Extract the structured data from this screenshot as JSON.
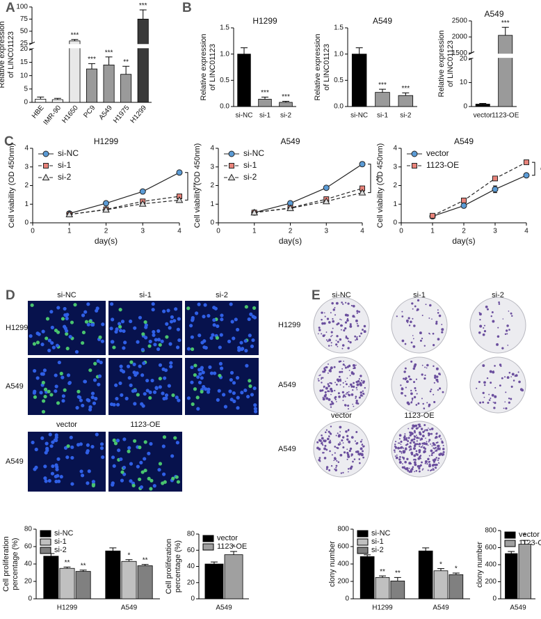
{
  "figure": {
    "panel_letters": [
      "A",
      "B",
      "C",
      "D",
      "E"
    ],
    "D": {
      "columns": [
        "si-NC",
        "si-1",
        "si-2"
      ],
      "rows": [
        "H1299",
        "A549"
      ],
      "oe_columns": [
        "vector",
        "1123-OE"
      ],
      "oe_row": "A549"
    },
    "E": {
      "columns": [
        "si-NC",
        "si-1",
        "si-2"
      ],
      "rows": [
        "H1299",
        "A549"
      ],
      "oe_columns": [
        "vector",
        "1123-OE"
      ],
      "oe_row": "A549"
    }
  },
  "chart_data": [
    {
      "type": "bar",
      "ylabel": [
        "Relative expression",
        "of LINC01123"
      ],
      "categories": [
        "HBE",
        "IMR-90",
        "H1650",
        "PC9",
        "A549",
        "H1975",
        "H1299"
      ],
      "values": [
        1.2,
        1.0,
        30,
        12.5,
        14,
        10.5,
        75
      ],
      "errors": [
        0.8,
        0.5,
        3,
        2,
        3,
        3,
        19
      ],
      "colors": [
        "#ffffff",
        "#ffffff",
        "#e8e8e8",
        "#9a9a9a",
        "#9a9a9a",
        "#9a9a9a",
        "#3a3a3a"
      ],
      "annotations": [
        null,
        null,
        "***",
        "***",
        "***",
        "**",
        "***"
      ],
      "ylim": [
        0,
        100
      ],
      "ybreak": [
        20,
        25
      ],
      "yticks": [
        0,
        5,
        10,
        15,
        20,
        25,
        50,
        75,
        100
      ]
    },
    {
      "type": "bar",
      "title": "H1299",
      "ylabel": [
        "Relative expression",
        "of LINC01123"
      ],
      "categories": [
        "si-NC",
        "si-1",
        "si-2"
      ],
      "values": [
        1.0,
        0.14,
        0.08
      ],
      "errors": [
        0.12,
        0.04,
        0.02
      ],
      "colors": [
        "#000000",
        "#9a9a9a",
        "#9a9a9a"
      ],
      "annotations": [
        null,
        "***",
        "***"
      ],
      "ylim": [
        0,
        1.5
      ],
      "yticks": [
        {
          "value": 0,
          "label": "0.0"
        },
        0.5,
        {
          "value": 1,
          "label": "1.0"
        },
        1.5
      ]
    },
    {
      "type": "bar",
      "title": "A549",
      "ylabel": [
        "Relative expression",
        "of LINC01123"
      ],
      "categories": [
        "si-NC",
        "si-1",
        "si-2"
      ],
      "values": [
        1.0,
        0.27,
        0.21
      ],
      "errors": [
        0.12,
        0.06,
        0.05
      ],
      "colors": [
        "#000000",
        "#9a9a9a",
        "#9a9a9a"
      ],
      "annotations": [
        null,
        "***",
        "***"
      ],
      "ylim": [
        0,
        1.5
      ],
      "yticks": [
        {
          "value": 0,
          "label": "0.0"
        },
        0.5,
        {
          "value": 1,
          "label": "1.0"
        },
        1.5
      ]
    },
    {
      "type": "bar",
      "title": "A549",
      "ylabel": [
        "Relative expression",
        "of LINC01123"
      ],
      "categories": [
        "vector",
        "1123-OE"
      ],
      "values": [
        1,
        2050
      ],
      "errors": [
        0.3,
        250
      ],
      "colors": [
        "#000000",
        "#9a9a9a"
      ],
      "annotations": [
        null,
        "***"
      ],
      "ylim": [
        0,
        2500
      ],
      "ybreak": [
        20,
        1500
      ],
      "yticks": [
        0,
        10,
        20,
        1500,
        2000,
        2500
      ]
    },
    {
      "type": "line",
      "title": "H1299",
      "ylabel": [
        "Cell viability (OD 450nm)"
      ],
      "xlabel": "day(s)",
      "x": [
        1,
        2,
        3,
        4
      ],
      "xlim": [
        0,
        4
      ],
      "xticks": [
        0,
        1,
        2,
        3,
        4
      ],
      "ylim": [
        0,
        4
      ],
      "yticks": [
        0,
        1,
        2,
        3,
        4
      ],
      "legend": "upper left",
      "annotation": "***",
      "series": [
        {
          "name": "si-NC",
          "color": "#5b9bd5",
          "marker": "circle",
          "line_style": "solid",
          "values": [
            0.5,
            1.05,
            1.68,
            2.7
          ],
          "errors": [
            0.06,
            0.1,
            0.1,
            0.1
          ]
        },
        {
          "name": "si-1",
          "color": "#e8837a",
          "marker": "square",
          "line_style": "dashed",
          "values": [
            0.45,
            0.72,
            1.15,
            1.42
          ],
          "errors": [
            0.05,
            0.05,
            0.12,
            0.08
          ]
        },
        {
          "name": "si-2",
          "color": "#dddddd",
          "marker": "triangle",
          "line_style": "dashed",
          "values": [
            0.45,
            0.7,
            1.02,
            1.22
          ],
          "errors": [
            0.05,
            0.05,
            0.06,
            0.08
          ]
        }
      ]
    },
    {
      "type": "line",
      "title": "A549",
      "ylabel": [
        "Cell viability (OD 450nm)"
      ],
      "xlabel": "day(s)",
      "x": [
        1,
        2,
        3,
        4
      ],
      "xlim": [
        0,
        4
      ],
      "xticks": [
        0,
        1,
        2,
        3,
        4
      ],
      "ylim": [
        0,
        4
      ],
      "yticks": [
        0,
        1,
        2,
        3,
        4
      ],
      "legend": "upper left",
      "annotation": "**",
      "series": [
        {
          "name": "si-NC",
          "color": "#5b9bd5",
          "marker": "circle",
          "line_style": "solid",
          "values": [
            0.55,
            1.05,
            1.88,
            3.15
          ],
          "errors": [
            0.05,
            0.08,
            0.08,
            0.12
          ]
        },
        {
          "name": "si-1",
          "color": "#e8837a",
          "marker": "square",
          "line_style": "dashed",
          "values": [
            0.55,
            0.8,
            1.27,
            1.85
          ],
          "errors": [
            0.05,
            0.05,
            0.06,
            0.08
          ]
        },
        {
          "name": "si-2",
          "color": "#dddddd",
          "marker": "triangle",
          "line_style": "dashed",
          "values": [
            0.55,
            0.78,
            1.15,
            1.62
          ],
          "errors": [
            0.05,
            0.05,
            0.05,
            0.06
          ]
        }
      ]
    },
    {
      "type": "line",
      "title": "A549",
      "ylabel": [
        "Cell viability (OD 450nm)"
      ],
      "xlabel": "day(s)",
      "x": [
        1,
        2,
        3,
        4
      ],
      "xlim": [
        0,
        4
      ],
      "xticks": [
        0,
        1,
        2,
        3,
        4
      ],
      "ylim": [
        0,
        4
      ],
      "yticks": [
        0,
        1,
        2,
        3,
        4
      ],
      "legend": "upper left",
      "annotation": "*",
      "series": [
        {
          "name": "vector",
          "color": "#5b9bd5",
          "marker": "circle",
          "line_style": "solid",
          "values": [
            0.35,
            0.92,
            1.8,
            2.55
          ],
          "errors": [
            0.08,
            0.1,
            0.18,
            0.08
          ]
        },
        {
          "name": "1123-OE",
          "color": "#e8837a",
          "marker": "square",
          "line_style": "dashed",
          "values": [
            0.38,
            1.2,
            2.38,
            3.25
          ],
          "errors": [
            0.06,
            0.1,
            0.1,
            0.1
          ]
        }
      ]
    },
    {
      "type": "bar",
      "ylabel": [
        "Cell proliferation",
        "percentage (%)"
      ],
      "categories": [
        "H1299",
        "A549"
      ],
      "ylim": [
        0,
        80
      ],
      "yticks": [
        0,
        20,
        40,
        60,
        80
      ],
      "legend": "upper left",
      "series": [
        {
          "name": "si-NC",
          "color": "#000000",
          "values": [
            49,
            55
          ],
          "errors": [
            3,
            3.5
          ]
        },
        {
          "name": "si-1",
          "color": "#c0c0c0",
          "values": [
            35,
            43
          ],
          "errors": [
            1.5,
            2
          ],
          "annotations": [
            "**",
            "*"
          ]
        },
        {
          "name": "si-2",
          "color": "#808080",
          "values": [
            31.5,
            38
          ],
          "errors": [
            1.5,
            1.5
          ],
          "annotations": [
            "**",
            "**"
          ]
        }
      ]
    },
    {
      "type": "bar",
      "ylabel": [
        "Cell proliferation",
        "percentage (%)"
      ],
      "categories": [
        "A549"
      ],
      "ylim": [
        0,
        80
      ],
      "yticks": [
        0,
        20,
        40,
        60,
        80
      ],
      "legend": "upper left",
      "series": [
        {
          "name": "vector",
          "color": "#000000",
          "values": [
            43
          ],
          "errors": [
            2.5
          ]
        },
        {
          "name": "1123-OE",
          "color": "#a0a0a0",
          "values": [
            54.5
          ],
          "errors": [
            4
          ],
          "annotations": [
            "*"
          ]
        }
      ]
    },
    {
      "type": "bar",
      "ylabel": [
        "clony number"
      ],
      "categories": [
        "H1299",
        "A549"
      ],
      "ylim": [
        0,
        800
      ],
      "yticks": [
        0,
        200,
        400,
        600,
        800
      ],
      "legend": "upper left",
      "series": [
        {
          "name": "si-NC",
          "color": "#000000",
          "values": [
            485,
            550
          ],
          "errors": [
            20,
            35
          ]
        },
        {
          "name": "si-1",
          "color": "#c0c0c0",
          "values": [
            245,
            322
          ],
          "errors": [
            18,
            25
          ],
          "annotations": [
            "**",
            "*"
          ]
        },
        {
          "name": "si-2",
          "color": "#808080",
          "values": [
            205,
            278
          ],
          "errors": [
            40,
            18
          ],
          "annotations": [
            "**",
            "*"
          ]
        }
      ]
    },
    {
      "type": "bar",
      "ylabel": [
        "clony number"
      ],
      "categories": [
        "A549"
      ],
      "ylim": [
        0,
        800
      ],
      "yticks": [
        0,
        200,
        400,
        600,
        800
      ],
      "legend": "upper left",
      "series": [
        {
          "name": "vector",
          "color": "#000000",
          "values": [
            530
          ],
          "errors": [
            25
          ]
        },
        {
          "name": "1123-OE",
          "color": "#a0a0a0",
          "values": [
            640
          ],
          "errors": [
            45
          ],
          "annotations": [
            "*"
          ]
        }
      ]
    }
  ]
}
